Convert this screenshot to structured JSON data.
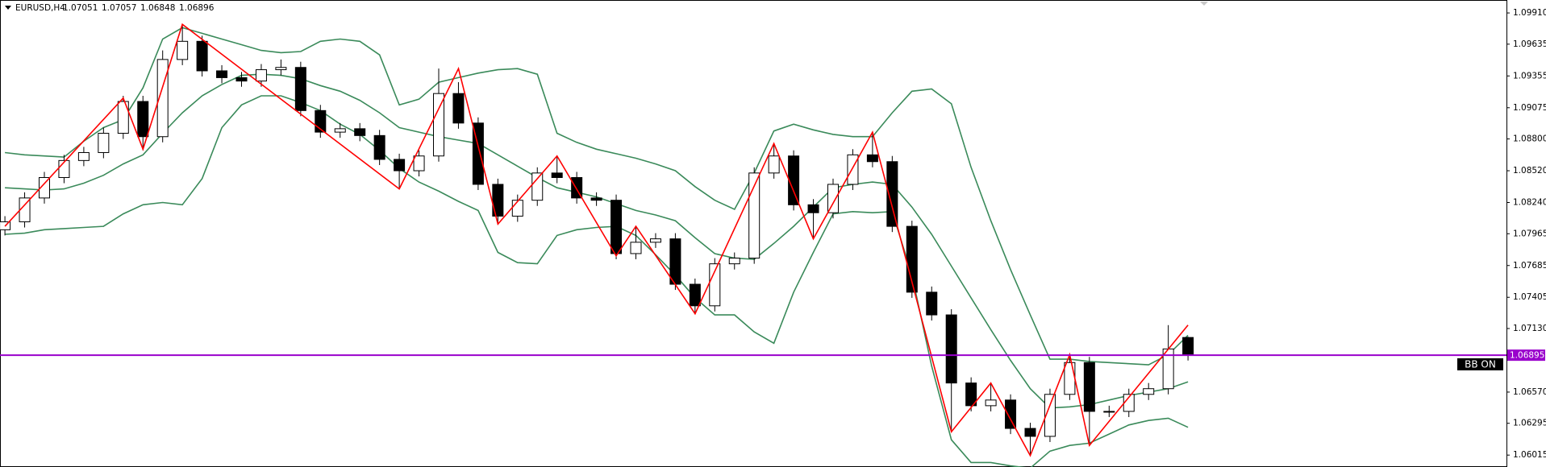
{
  "chart_data": {
    "type": "candlestick",
    "title": "EURUSD,H4",
    "open": [
      1.08,
      1.0807,
      1.0828,
      1.0846,
      1.0861,
      1.0868,
      1.0885,
      1.0913,
      1.0882,
      1.095,
      1.0966,
      1.094,
      1.0934,
      1.0931,
      1.0941,
      1.0943,
      1.0905,
      1.0886,
      1.0889,
      1.0883,
      1.0862,
      1.0852,
      1.0865,
      1.092,
      1.0894,
      1.084,
      1.0812,
      1.0826,
      1.085,
      1.0846,
      1.0828,
      1.0826,
      1.0779,
      1.0789,
      1.0792,
      1.0752,
      1.0733,
      1.077,
      1.0775,
      1.085,
      1.0865,
      1.0822,
      1.0815,
      1.084,
      1.0866,
      1.086,
      1.0803,
      1.0745,
      1.0725,
      1.0665,
      1.0645,
      1.065,
      1.0625,
      1.0618,
      1.0655,
      1.0683,
      1.064,
      1.064,
      1.0655,
      1.066,
      1.07051
    ],
    "high": [
      1.0812,
      1.0833,
      1.0851,
      1.0866,
      1.0873,
      1.089,
      1.0918,
      1.0918,
      1.0958,
      1.0981,
      1.0971,
      1.0945,
      1.0939,
      1.0946,
      1.095,
      1.0948,
      1.091,
      1.0894,
      1.0894,
      1.0888,
      1.0867,
      1.087,
      1.0942,
      1.093,
      1.0899,
      1.0845,
      1.0831,
      1.0855,
      1.0865,
      1.0851,
      1.0833,
      1.0831,
      1.0803,
      1.0797,
      1.0797,
      1.0757,
      1.0775,
      1.078,
      1.0855,
      1.0876,
      1.087,
      1.0827,
      1.0845,
      1.0871,
      1.0886,
      1.0865,
      1.0808,
      1.075,
      1.073,
      1.067,
      1.0665,
      1.0655,
      1.063,
      1.066,
      1.069,
      1.0688,
      1.0645,
      1.066,
      1.0665,
      1.0716,
      1.07057
    ],
    "low": [
      1.0795,
      1.0802,
      1.0823,
      1.0841,
      1.0856,
      1.0863,
      1.088,
      1.087,
      1.0877,
      1.0945,
      1.0935,
      1.0929,
      1.0926,
      1.0926,
      1.0936,
      1.09,
      1.0881,
      1.0881,
      1.0878,
      1.0857,
      1.0836,
      1.0847,
      1.086,
      1.0889,
      1.0835,
      1.0805,
      1.0807,
      1.0821,
      1.0841,
      1.0823,
      1.0821,
      1.0774,
      1.0774,
      1.0784,
      1.0747,
      1.0726,
      1.0728,
      1.0765,
      1.077,
      1.0845,
      1.0817,
      1.0792,
      1.081,
      1.0835,
      1.0855,
      1.0798,
      1.074,
      1.072,
      1.0622,
      1.064,
      1.064,
      1.062,
      1.0601,
      1.0613,
      1.065,
      1.061,
      1.0635,
      1.0635,
      1.065,
      1.0655,
      1.06848
    ],
    "close": [
      1.0807,
      1.0828,
      1.0846,
      1.0861,
      1.0868,
      1.0885,
      1.0913,
      1.0882,
      1.095,
      1.0966,
      1.094,
      1.0934,
      1.0931,
      1.0941,
      1.0943,
      1.0905,
      1.0886,
      1.0889,
      1.0883,
      1.0862,
      1.0852,
      1.0865,
      1.092,
      1.0894,
      1.084,
      1.0812,
      1.0826,
      1.085,
      1.0846,
      1.0828,
      1.0826,
      1.0779,
      1.0789,
      1.0792,
      1.0752,
      1.0733,
      1.077,
      1.0775,
      1.085,
      1.0865,
      1.0822,
      1.0815,
      1.084,
      1.0866,
      1.086,
      1.0803,
      1.0745,
      1.0725,
      1.0665,
      1.0645,
      1.065,
      1.0625,
      1.0618,
      1.0655,
      1.0683,
      1.064,
      1.064,
      1.0655,
      1.066,
      1.0695,
      1.06896
    ],
    "candle_colors": {
      "up": "#ffffff",
      "down": "#000000",
      "outline": "#000000"
    },
    "bollinger": {
      "color": "#3a8a5a",
      "upper": [
        1.0868,
        1.0866,
        1.0865,
        1.0864,
        1.0878,
        1.089,
        1.0897,
        1.0925,
        1.0968,
        1.0978,
        1.0973,
        1.0968,
        1.0963,
        1.0958,
        1.0956,
        1.0957,
        1.0966,
        1.0968,
        1.0966,
        1.0954,
        1.091,
        1.0915,
        1.093,
        1.0934,
        1.0938,
        1.0941,
        1.0942,
        1.0937,
        1.0885,
        1.0877,
        1.0871,
        1.0867,
        1.0863,
        1.0858,
        1.0852,
        1.0838,
        1.0826,
        1.0818,
        1.085,
        1.0887,
        1.0893,
        1.0888,
        1.0884,
        1.0882,
        1.0882,
        1.0903,
        1.0922,
        1.0924,
        1.0911,
        1.0855,
        1.0808,
        1.0765,
        1.0725,
        1.0686,
        1.0686,
        1.0684,
        1.0683,
        1.0682,
        1.0681,
        1.069,
        1.0707
      ],
      "middle": [
        1.0837,
        1.0836,
        1.0835,
        1.0836,
        1.0841,
        1.0848,
        1.0858,
        1.0866,
        1.0885,
        1.0903,
        1.0918,
        1.0928,
        1.0936,
        1.0937,
        1.0936,
        1.0933,
        1.0927,
        1.0922,
        1.0914,
        1.0903,
        1.089,
        1.0886,
        1.0882,
        1.0879,
        1.0876,
        1.0866,
        1.0856,
        1.0846,
        1.0837,
        1.0833,
        1.0829,
        1.0823,
        1.0817,
        1.0813,
        1.0808,
        1.0793,
        1.0779,
        1.0775,
        1.0774,
        1.0788,
        1.0803,
        1.082,
        1.0837,
        1.084,
        1.0842,
        1.084,
        1.082,
        1.0796,
        1.0768,
        1.074,
        1.0712,
        1.0685,
        1.066,
        1.0643,
        1.0644,
        1.0646,
        1.065,
        1.0654,
        1.0657,
        1.066,
        1.0666
      ],
      "lower": [
        1.0796,
        1.0797,
        1.08,
        1.0801,
        1.0802,
        1.0803,
        1.0814,
        1.0822,
        1.0824,
        1.0822,
        1.0845,
        1.089,
        1.091,
        1.0918,
        1.0918,
        1.0912,
        1.0905,
        1.0893,
        1.0884,
        1.087,
        1.0854,
        1.0842,
        1.0834,
        1.0825,
        1.0817,
        1.078,
        1.0771,
        1.077,
        1.0795,
        1.08,
        1.0802,
        1.0803,
        1.0795,
        1.0778,
        1.076,
        1.074,
        1.0725,
        1.0725,
        1.071,
        1.07,
        1.0745,
        1.078,
        1.0814,
        1.0816,
        1.0815,
        1.0816,
        1.076,
        1.068,
        1.0615,
        1.0595,
        1.0595,
        1.0592,
        1.059,
        1.0605,
        1.061,
        1.0612,
        1.062,
        1.0628,
        1.0632,
        1.0634,
        1.0626
      ]
    },
    "zigzag": {
      "color": "#ff0000",
      "x": [
        0,
        6,
        7,
        9,
        20,
        23,
        25,
        28,
        31,
        32,
        35,
        39,
        41,
        44,
        48,
        50,
        52,
        54,
        55,
        60
      ],
      "values": [
        1.0803,
        1.0916,
        1.0871,
        1.0981,
        1.0836,
        1.0942,
        1.0805,
        1.0865,
        1.0777,
        1.0803,
        1.0726,
        1.0876,
        1.0792,
        1.0886,
        1.0622,
        1.0665,
        1.0601,
        1.069,
        1.061,
        1.0716
      ]
    },
    "hline": {
      "value": 1.06895,
      "color": "#9900cc"
    },
    "annotation": "BB ON",
    "ylim": [
      1.0591,
      1.10024
    ],
    "yticks": [
      {
        "value": 1.0991,
        "label": "1.09910"
      },
      1.09635,
      1.09355,
      1.09075,
      {
        "value": 1.088,
        "label": "1.08800"
      },
      {
        "value": 1.0852,
        "label": "1.08520"
      },
      {
        "value": 1.0824,
        "label": "1.08240"
      },
      1.07965,
      1.07685,
      1.07405,
      {
        "value": 1.0713,
        "label": "1.07130"
      },
      {
        "value": 1.0657,
        "label": "1.06570"
      },
      1.06295,
      1.06015
    ]
  }
}
